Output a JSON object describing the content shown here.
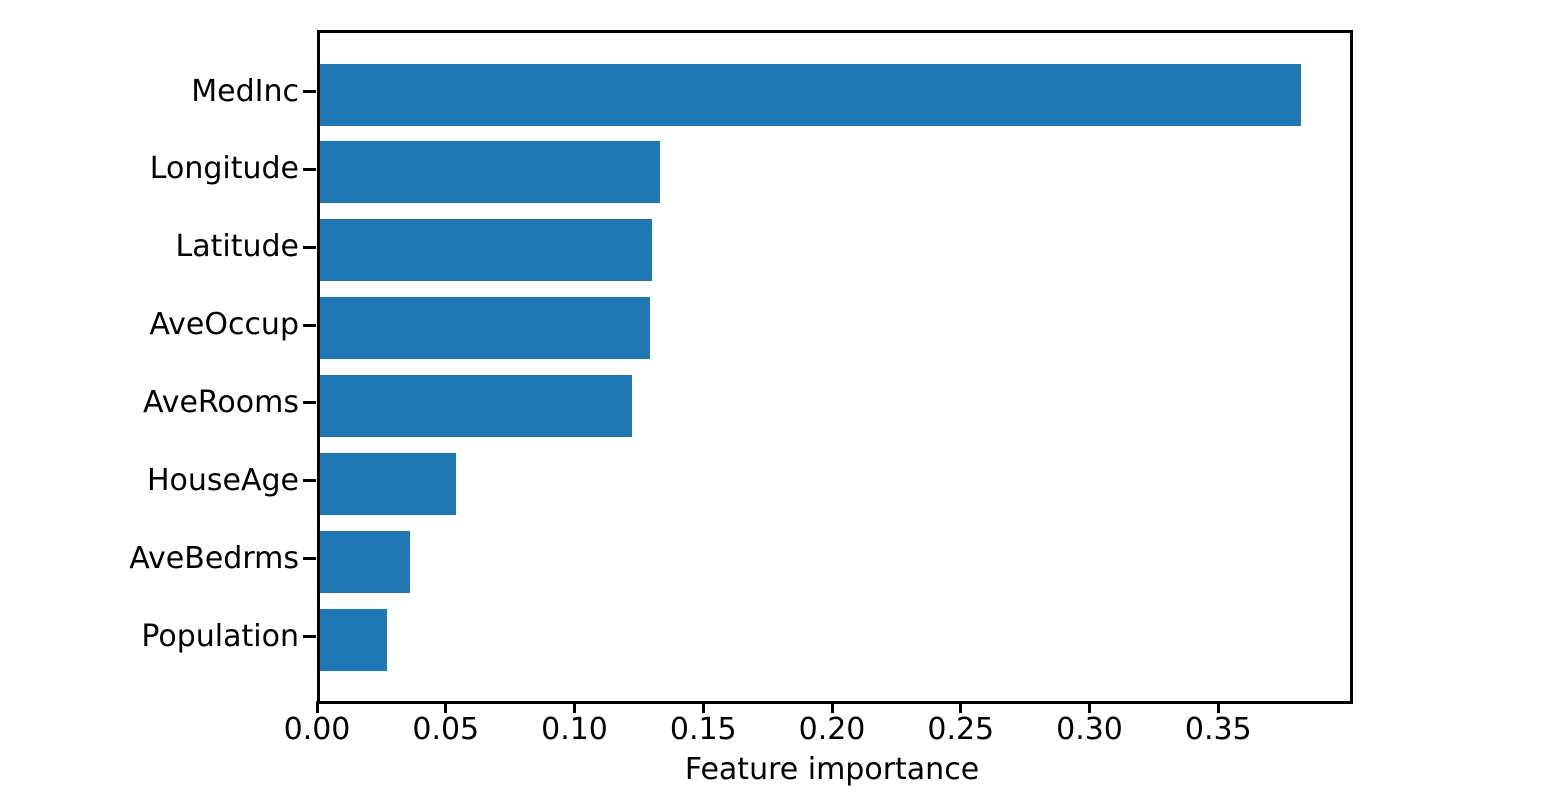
{
  "chart_data": {
    "type": "bar",
    "orientation": "horizontal",
    "title": "",
    "xlabel": "Feature importance",
    "ylabel": "",
    "categories": [
      "MedInc",
      "Longitude",
      "Latitude",
      "AveOccup",
      "AveRooms",
      "HouseAge",
      "AveBedrms",
      "Population"
    ],
    "values": [
      0.381,
      0.132,
      0.129,
      0.128,
      0.121,
      0.053,
      0.035,
      0.026
    ],
    "xlim": [
      0,
      0.4
    ],
    "x_ticks": [
      0.0,
      0.05,
      0.1,
      0.15,
      0.2,
      0.25,
      0.3,
      0.35
    ],
    "x_tick_decimals": 2,
    "bar_color": "#1f77b4",
    "axis_color": "#000000",
    "text_color": "#000000",
    "grid": false,
    "legend": "none"
  }
}
